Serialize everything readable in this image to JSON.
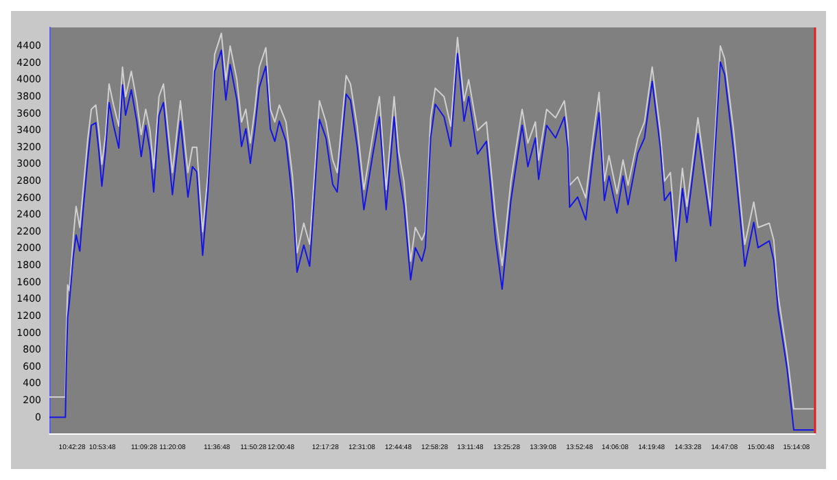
{
  "chart_data": {
    "type": "line",
    "x": [
      10.566,
      10.666,
      10.672,
      10.68,
      10.691,
      10.716,
      10.733,
      10.756,
      10.775,
      10.806,
      10.828,
      10.856,
      10.875,
      10.894,
      10.917,
      10.939,
      10.967,
      11.0,
      11.023,
      11.042,
      11.078,
      11.112,
      11.14,
      11.168,
      11.195,
      11.218,
      11.251,
      11.279,
      11.335,
      11.385,
      11.432,
      11.46,
      11.487,
      11.524,
      11.558,
      11.599,
      11.641,
      11.669,
      11.696,
      11.738,
      11.767,
      11.794,
      11.822,
      11.85,
      11.878,
      11.919,
      11.947,
      11.975,
      12.003,
      12.045,
      12.086,
      12.114,
      12.156,
      12.193,
      12.254,
      12.295,
      12.337,
      12.365,
      12.421,
      12.448,
      12.49,
      12.532,
      12.588,
      12.629,
      12.671,
      12.721,
      12.749,
      12.782,
      12.824,
      12.853,
      12.894,
      12.916,
      12.949,
      12.978,
      13.033,
      13.075,
      13.117,
      13.158,
      13.187,
      13.242,
      13.298,
      13.354,
      13.396,
      13.451,
      13.521,
      13.557,
      13.604,
      13.624,
      13.674,
      13.73,
      13.785,
      13.807,
      13.818,
      13.868,
      13.919,
      13.966,
      14.002,
      14.035,
      14.064,
      14.114,
      14.152,
      14.183,
      14.244,
      14.286,
      14.334,
      14.384,
      14.411,
      14.448,
      14.482,
      14.523,
      14.551,
      14.62,
      14.699,
      14.76,
      14.787,
      14.843,
      14.899,
      14.913,
      14.969,
      14.996,
      15.066,
      15.094,
      15.121,
      15.177,
      15.219,
      15.345
    ],
    "series": [
      {
        "color": "#d0d0d0",
        "values": [
          240,
          240,
          1000,
          1570,
          1500,
          2150,
          2500,
          2250,
          2650,
          3300,
          3650,
          3700,
          3400,
          3000,
          3350,
          3950,
          3700,
          3450,
          4150,
          3800,
          4100,
          3750,
          3350,
          3650,
          3400,
          2950,
          3800,
          3950,
          2900,
          3750,
          2900,
          3200,
          3200,
          2200,
          2900,
          4300,
          4550,
          4000,
          4400,
          4000,
          3500,
          3650,
          3250,
          3650,
          4150,
          4380,
          3650,
          3500,
          3700,
          3500,
          2850,
          1950,
          2300,
          2050,
          3750,
          3500,
          3050,
          2900,
          4050,
          3950,
          3450,
          2700,
          3350,
          3800,
          2700,
          3800,
          3150,
          2800,
          1850,
          2250,
          2100,
          2200,
          3550,
          3900,
          3800,
          3450,
          4500,
          3750,
          4000,
          3400,
          3500,
          2400,
          1800,
          2800,
          3650,
          3250,
          3500,
          3050,
          3650,
          3550,
          3750,
          3400,
          2750,
          2850,
          2600,
          3350,
          3850,
          2800,
          3100,
          2650,
          3050,
          2750,
          3300,
          3500,
          4150,
          3400,
          2800,
          2900,
          2100,
          2950,
          2500,
          3550,
          2450,
          4400,
          4250,
          3400,
          2300,
          2050,
          2550,
          2250,
          2300,
          2100,
          1450,
          750,
          100,
          100
        ]
      },
      {
        "color": "#1414e6",
        "values": [
          0,
          0,
          630,
          1180,
          1370,
          1920,
          2160,
          1970,
          2420,
          3060,
          3460,
          3490,
          3160,
          2740,
          3160,
          3730,
          3460,
          3190,
          3940,
          3580,
          3880,
          3510,
          3090,
          3460,
          3160,
          2670,
          3580,
          3730,
          2640,
          3510,
          2610,
          2970,
          2910,
          1920,
          2710,
          4100,
          4350,
          3760,
          4180,
          3760,
          3210,
          3420,
          3010,
          3420,
          3910,
          4160,
          3420,
          3270,
          3510,
          3270,
          2570,
          1720,
          2040,
          1790,
          3530,
          3310,
          2760,
          2670,
          3830,
          3760,
          3210,
          2460,
          3120,
          3560,
          2460,
          3560,
          2910,
          2520,
          1630,
          2010,
          1850,
          2010,
          3310,
          3710,
          3560,
          3210,
          4310,
          3510,
          3800,
          3120,
          3270,
          2120,
          1520,
          2570,
          3460,
          2970,
          3310,
          2820,
          3460,
          3310,
          3560,
          3190,
          2490,
          2610,
          2340,
          3120,
          3610,
          2570,
          2860,
          2420,
          2860,
          2520,
          3130,
          3310,
          3980,
          3210,
          2570,
          2670,
          1850,
          2710,
          2310,
          3360,
          2270,
          4210,
          4060,
          3160,
          2070,
          1790,
          2310,
          2010,
          2090,
          1860,
          1270,
          580,
          -150,
          -150
        ]
      }
    ],
    "xlim": [
      10.566,
      15.352
    ],
    "xticks": [
      {
        "value": 10.7078,
        "label": "10:42:28"
      },
      {
        "value": 10.8967,
        "label": "10:53:48"
      },
      {
        "value": 11.1578,
        "label": "11:09:28"
      },
      {
        "value": 11.3356,
        "label": "11:20:08"
      },
      {
        "value": 11.6133,
        "label": "11:36:48"
      },
      {
        "value": 11.8411,
        "label": "11:50:28"
      },
      {
        "value": 12.0133,
        "label": "12:00:48"
      },
      {
        "value": 12.2911,
        "label": "12:17:28"
      },
      {
        "value": 12.5189,
        "label": "12:31:08"
      },
      {
        "value": 12.7467,
        "label": "12:44:48"
      },
      {
        "value": 12.9744,
        "label": "12:58:28"
      },
      {
        "value": 13.1967,
        "label": "13:11:48"
      },
      {
        "value": 13.4244,
        "label": "13:25:28"
      },
      {
        "value": 13.6522,
        "label": "13:39:08"
      },
      {
        "value": 13.88,
        "label": "13:52:48"
      },
      {
        "value": 14.1022,
        "label": "14:06:08"
      },
      {
        "value": 14.33,
        "label": "14:19:48"
      },
      {
        "value": 14.5578,
        "label": "14:33:28"
      },
      {
        "value": 14.7856,
        "label": "14:47:08"
      },
      {
        "value": 15.0133,
        "label": "15:00:48"
      },
      {
        "value": 15.2356,
        "label": "15:14:08"
      }
    ],
    "ylim": [
      -190,
      4620
    ],
    "yticks": [
      0,
      200,
      400,
      600,
      800,
      1000,
      1200,
      1400,
      1600,
      1800,
      2000,
      2200,
      2400,
      2600,
      2800,
      3000,
      3200,
      3400,
      3600,
      3800,
      4000,
      4200,
      4400
    ],
    "ref_lines": [
      {
        "axis": "x",
        "value": 15.35,
        "color": "#e02020"
      }
    ],
    "line_style": "solid",
    "marker": "none",
    "grid": false
  }
}
